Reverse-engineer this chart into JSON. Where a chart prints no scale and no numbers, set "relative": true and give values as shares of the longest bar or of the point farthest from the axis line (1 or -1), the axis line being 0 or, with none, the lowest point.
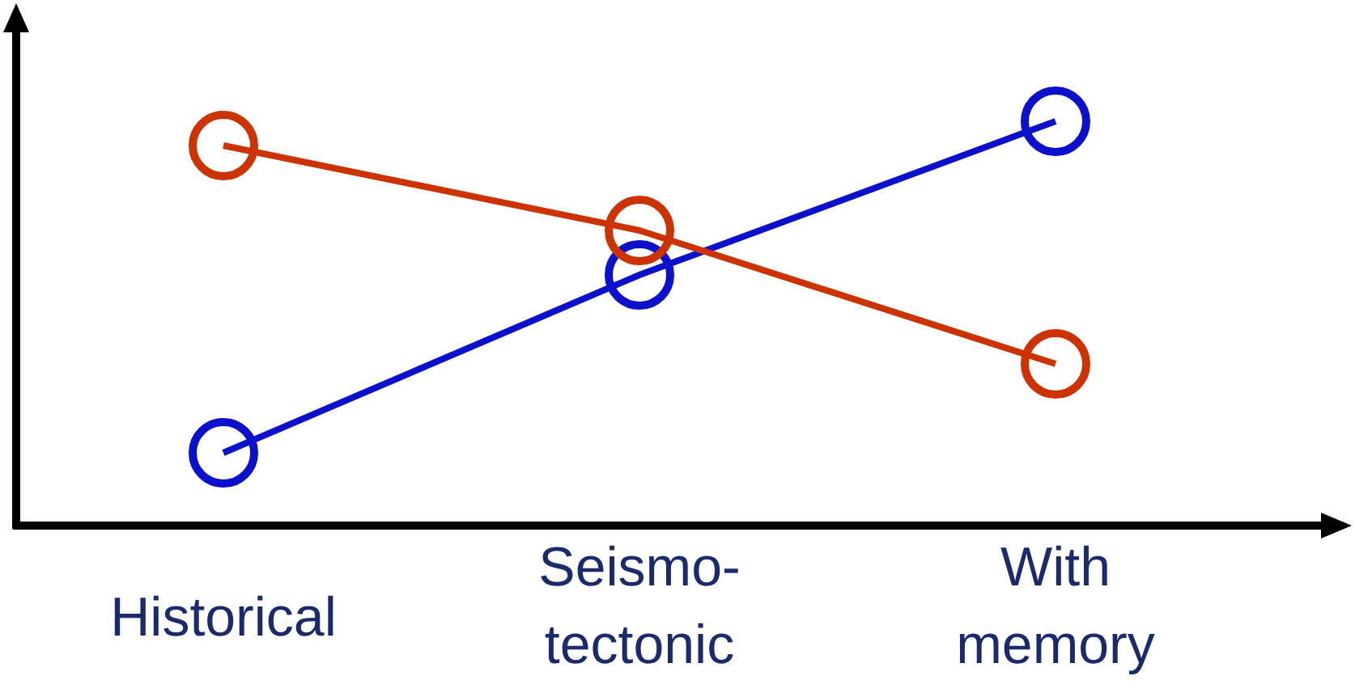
{
  "chart_data": {
    "type": "line",
    "relative": true,
    "categories": [
      "Historical",
      "Seismo-tectonic",
      "With memory"
    ],
    "series": [
      {
        "color": "#0a10cc",
        "values": [
          0.18,
          0.62,
          1
        ]
      },
      {
        "color": "#cc3300",
        "values": [
          0.94,
          0.73,
          0.4
        ]
      }
    ],
    "marker": "circle",
    "line_style": "solid"
  }
}
